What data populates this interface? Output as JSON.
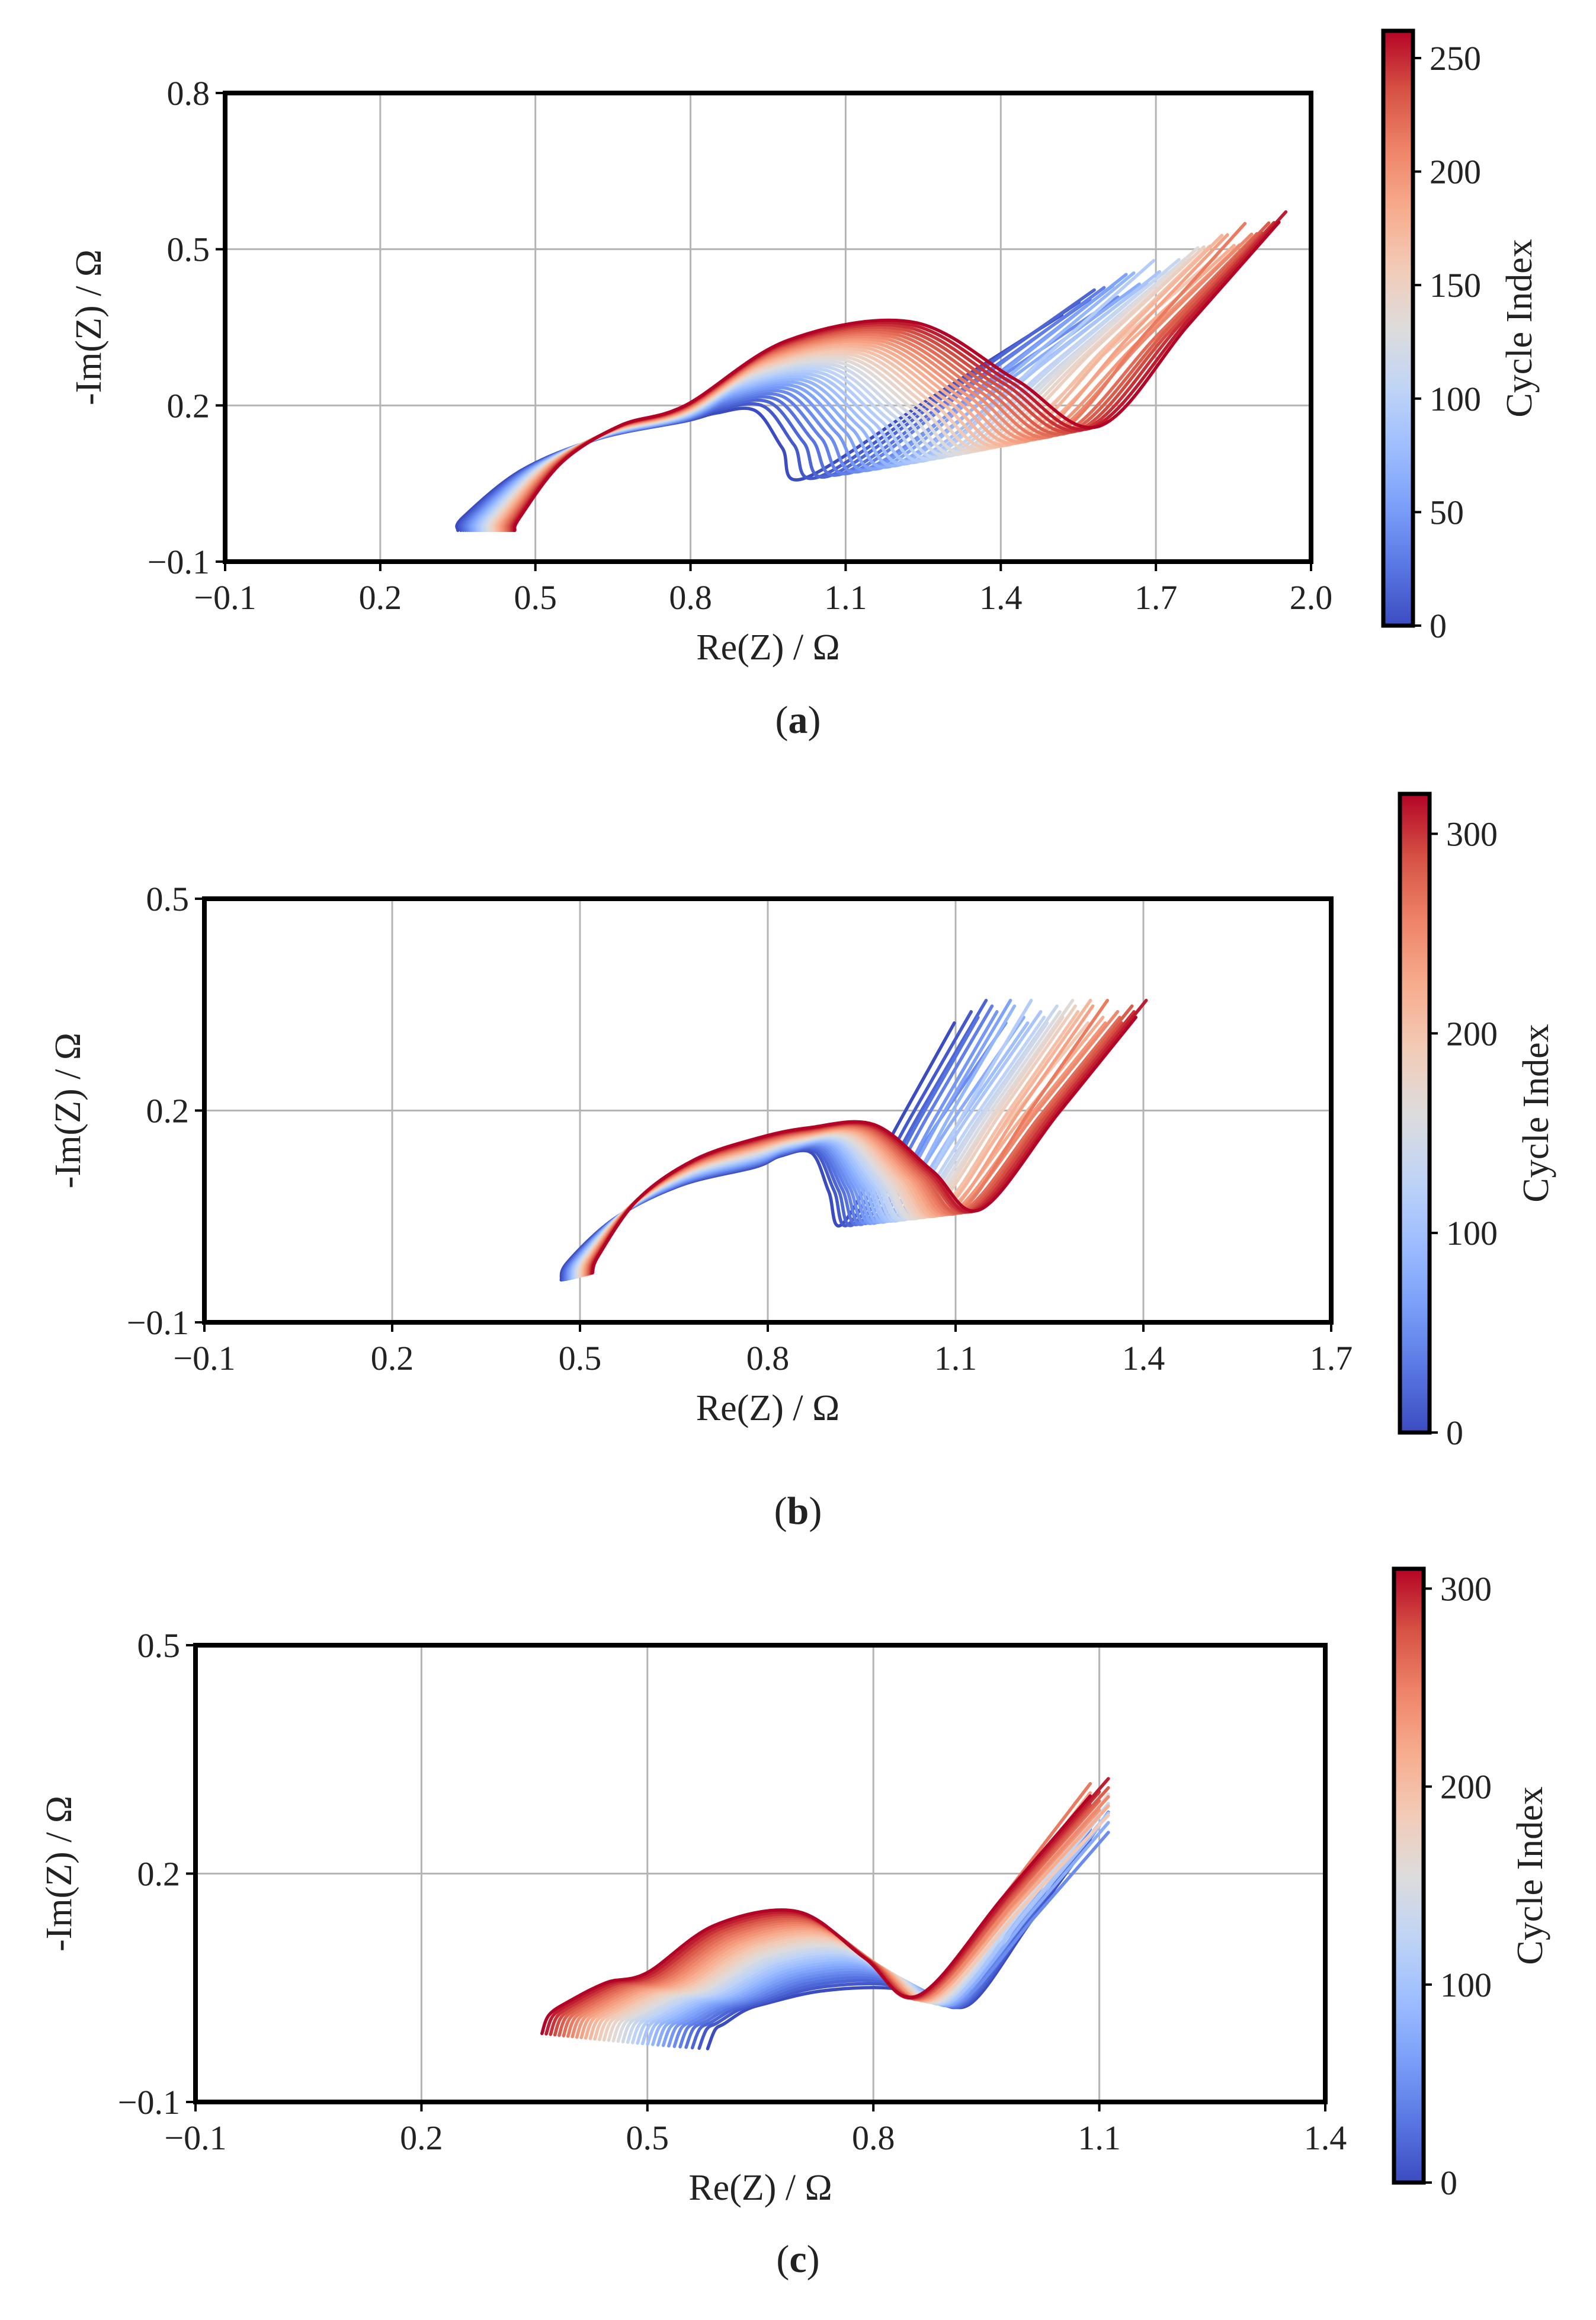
{
  "figure": {
    "captions": [
      {
        "open": "(",
        "letter": "a",
        "close": ")"
      },
      {
        "open": "(",
        "letter": "b",
        "close": ")"
      },
      {
        "open": "(",
        "letter": "c",
        "close": ")"
      }
    ]
  },
  "colors": {
    "cold": "#3b4cc0",
    "mid": "#dddddd",
    "hot": "#b40426",
    "grid": "#b4b4b4",
    "frame": "#000000"
  },
  "chart_data": [
    {
      "type": "line",
      "title": "",
      "xlabel": "Re(Z) / Ω",
      "ylabel": "-Im(Z) / Ω",
      "xlim": [
        -0.1,
        2.0
      ],
      "ylim": [
        -0.1,
        0.8
      ],
      "xticks": [
        -0.1,
        0.2,
        0.5,
        0.8,
        1.1,
        1.4,
        1.7,
        2.0
      ],
      "xtick_labels": [
        "−0.1",
        "0.2",
        "0.5",
        "0.8",
        "1.1",
        "1.4",
        "1.7",
        "2.0"
      ],
      "yticks": [
        -0.1,
        0.2,
        0.5,
        0.8
      ],
      "ytick_labels": [
        "−0.1",
        "0.2",
        "0.5",
        "0.8"
      ],
      "grid": true,
      "colorbar": {
        "label": "Cycle Index",
        "min": 0,
        "max": 262,
        "ticks": [
          0,
          50,
          100,
          150,
          200,
          250
        ],
        "tick_labels": [
          "0",
          "50",
          "100",
          "150",
          "200",
          "250"
        ],
        "colormap": "coolwarm"
      },
      "series_description": "Nyquist plots, one curve per cycle, colored by cycle index",
      "first_cycle": {
        "x_start": 0.35,
        "y_start": -0.04,
        "kink_x": 0.79,
        "kink_y": 0.17,
        "min_x": 1.02,
        "min_y": 0.06,
        "tail_end_x": 1.53,
        "tail_end_y": 0.39
      },
      "last_cycle": {
        "x_start": 0.46,
        "y_start": -0.04,
        "kink_x": 0.79,
        "kink_y": 0.2,
        "min_x": 1.59,
        "min_y": 0.16,
        "tail_end_x": 1.95,
        "tail_end_y": 0.56
      },
      "arc_peak_last": {
        "x": 1.23,
        "y": 0.36
      }
    },
    {
      "type": "line",
      "title": "",
      "xlabel": "Re(Z) / Ω",
      "ylabel": "-Im(Z) / Ω",
      "xlim": [
        -0.1,
        1.7
      ],
      "ylim": [
        -0.1,
        0.5
      ],
      "xticks": [
        -0.1,
        0.2,
        0.5,
        0.8,
        1.1,
        1.4,
        1.7
      ],
      "xtick_labels": [
        "−0.1",
        "0.2",
        "0.5",
        "0.8",
        "1.1",
        "1.4",
        "1.7"
      ],
      "yticks": [
        -0.1,
        0.2,
        0.5
      ],
      "ytick_labels": [
        "−0.1",
        "0.2",
        "0.5"
      ],
      "grid": true,
      "colorbar": {
        "label": "Cycle Index",
        "min": 0,
        "max": 320,
        "ticks": [
          0,
          100,
          200,
          300
        ],
        "tick_labels": [
          "0",
          "100",
          "200",
          "300"
        ],
        "colormap": "coolwarm"
      },
      "series_description": "Nyquist plots, one curve per cycle, colored by cycle index",
      "first_cycle": {
        "x_start": 0.47,
        "y_start": -0.04,
        "kink_x": 0.78,
        "kink_y": 0.12,
        "min_x": 0.92,
        "min_y": 0.04,
        "tail_end_x": 1.11,
        "tail_end_y": 0.34
      },
      "last_cycle": {
        "x_start": 0.52,
        "y_start": -0.03,
        "kink_x": 0.78,
        "kink_y": 0.16,
        "min_x": 1.14,
        "min_y": 0.06,
        "tail_end_x": 1.4,
        "tail_end_y": 0.34
      },
      "arc_peak_last": {
        "x": 0.97,
        "y": 0.18
      }
    },
    {
      "type": "line",
      "title": "",
      "xlabel": "Re(Z) / Ω",
      "ylabel": "-Im(Z) / Ω",
      "xlim": [
        -0.1,
        1.4
      ],
      "ylim": [
        -0.1,
        0.5
      ],
      "xticks": [
        -0.1,
        0.2,
        0.5,
        0.8,
        1.1,
        1.4
      ],
      "xtick_labels": [
        "−0.1",
        "0.2",
        "0.5",
        "0.8",
        "1.1",
        "1.4"
      ],
      "yticks": [
        -0.1,
        0.2,
        0.5
      ],
      "ytick_labels": [
        "−0.1",
        "0.2",
        "0.5"
      ],
      "grid": true,
      "colorbar": {
        "label": "Cycle Index",
        "min": 0,
        "max": 310,
        "ticks": [
          0,
          100,
          200,
          300
        ],
        "tick_labels": [
          "0",
          "100",
          "200",
          "300"
        ],
        "colormap": "coolwarm"
      },
      "series_description": "Nyquist plots, one curve per cycle, colored by cycle index",
      "first_cycle": {
        "x_start": 0.58,
        "y_start": -0.03,
        "kink_x": 0.66,
        "kink_y": 0.03,
        "min_x": 0.93,
        "min_y": 0.03,
        "tail_end_x": 1.1,
        "tail_end_y": 0.26
      },
      "last_cycle": {
        "x_start": 0.36,
        "y_start": -0.01,
        "kink_x": 0.5,
        "kink_y": 0.07,
        "min_x": 0.86,
        "min_y": 0.04,
        "tail_end_x": 1.1,
        "tail_end_y": 0.31
      },
      "arc_peak_last": {
        "x": 0.7,
        "y": 0.15
      }
    }
  ]
}
